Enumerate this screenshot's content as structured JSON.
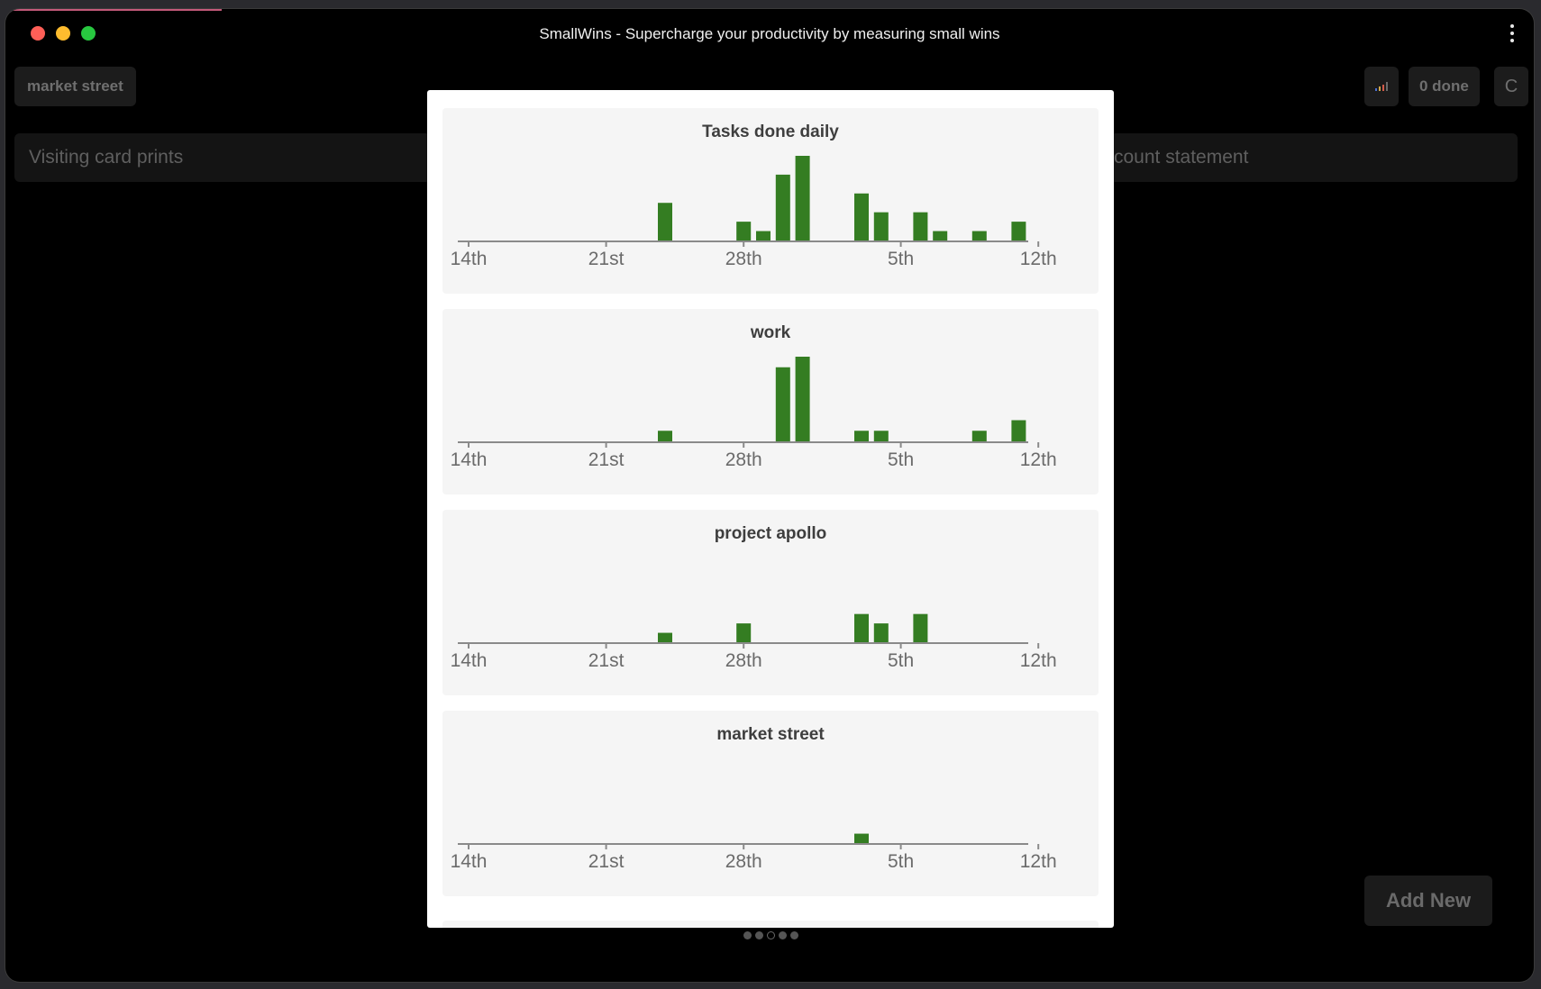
{
  "window": {
    "title": "SmallWins - Supercharge your productivity by measuring small wins"
  },
  "toolbar": {
    "project_name": "market street",
    "done_label": "0 done",
    "extra_label": "C"
  },
  "cards": [
    "Visiting card prints",
    "count statement"
  ],
  "add_new_label": "Add New",
  "colors": {
    "bar": "#347d22",
    "axis": "#8a8a8a",
    "tick_text": "#6b6b6b"
  },
  "chart_data": [
    {
      "type": "bar",
      "title": "Tasks done daily",
      "x_ticks": [
        "14th",
        "21st",
        "28th",
        "5th",
        "12th"
      ],
      "x": [
        "24th",
        "28th",
        "29th",
        "30th",
        "31st",
        "3rd",
        "4th",
        "6th",
        "7th",
        "9th",
        "11th"
      ],
      "values": [
        4,
        2,
        1,
        7,
        9,
        5,
        3,
        3,
        1,
        1,
        2
      ],
      "ylim": [
        0,
        9
      ]
    },
    {
      "type": "bar",
      "title": "work",
      "x_ticks": [
        "14th",
        "21st",
        "28th",
        "5th",
        "12th"
      ],
      "x": [
        "24th",
        "30th",
        "31st",
        "3rd",
        "4th",
        "9th",
        "11th"
      ],
      "values": [
        1,
        7,
        8,
        1,
        1,
        1,
        2
      ],
      "ylim": [
        0,
        8
      ]
    },
    {
      "type": "bar",
      "title": "project apollo",
      "x_ticks": [
        "14th",
        "21st",
        "28th",
        "5th",
        "12th"
      ],
      "x": [
        "24th",
        "28th",
        "3rd",
        "4th",
        "6th"
      ],
      "values": [
        1,
        2,
        3,
        2,
        3
      ],
      "ylim": [
        0,
        9
      ]
    },
    {
      "type": "bar",
      "title": "market street",
      "x_ticks": [
        "14th",
        "21st",
        "28th",
        "5th",
        "12th"
      ],
      "x": [
        "3rd"
      ],
      "values": [
        1
      ],
      "ylim": [
        0,
        9
      ]
    }
  ],
  "pagination": {
    "count": 5,
    "active": 3
  }
}
